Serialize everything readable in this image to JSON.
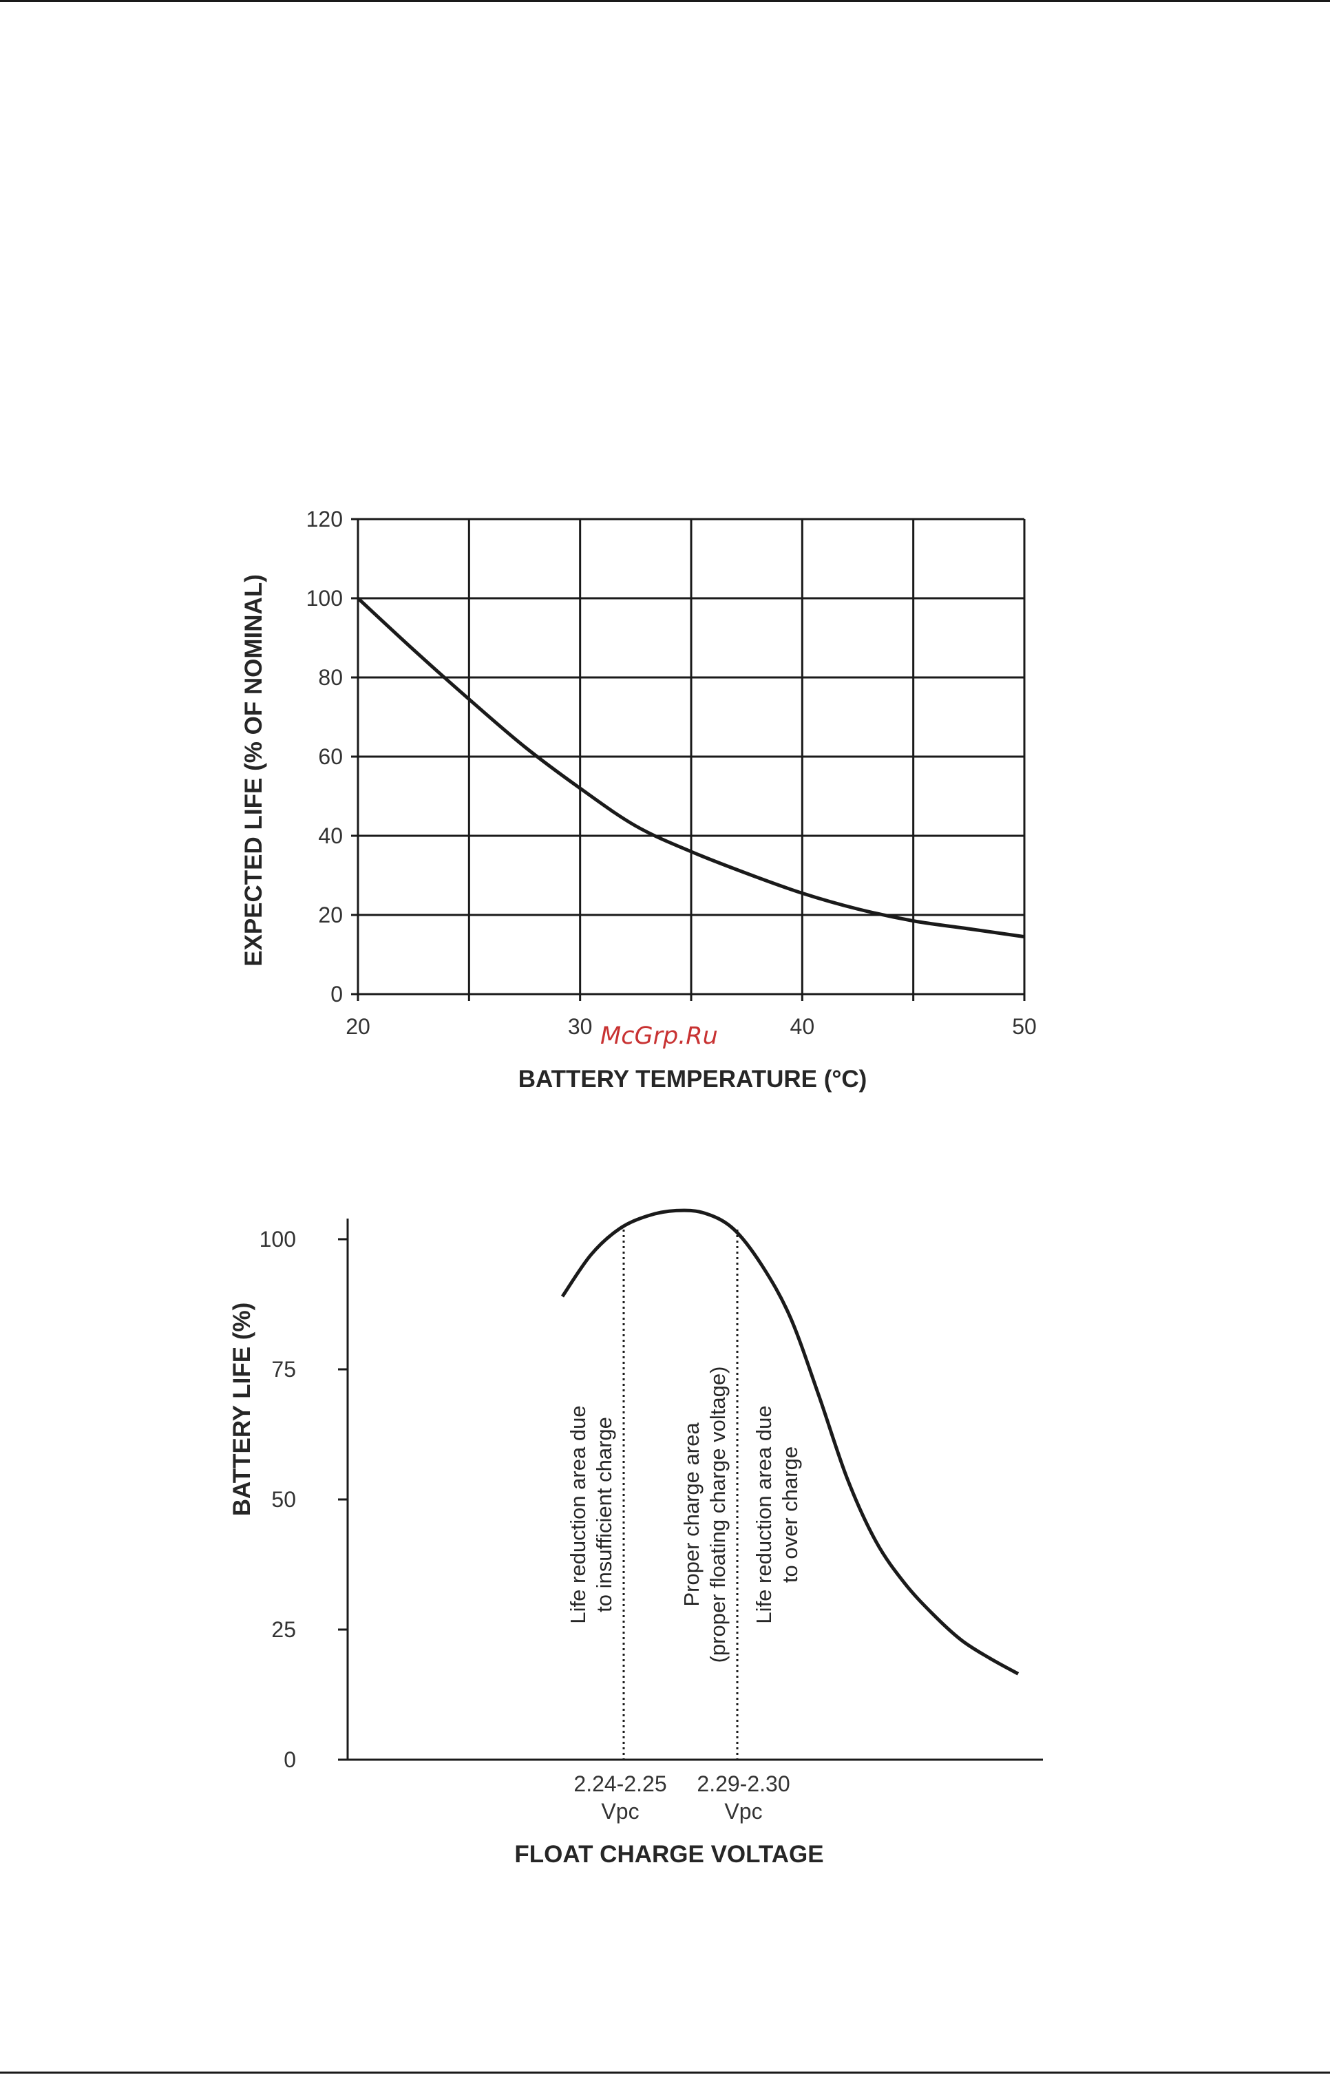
{
  "watermark": "McGrp.Ru",
  "colors": {
    "line": "#1a1a1a",
    "grid": "#1a1a1a",
    "text": "#262626",
    "watermark": "#c83232"
  },
  "chart_data": [
    {
      "type": "line",
      "title": "",
      "xlabel": "BATTERY TEMPERATURE (°C)",
      "ylabel": "EXPECTED LIFE (% OF NOMINAL)",
      "xlim": [
        20,
        50
      ],
      "ylim": [
        0,
        120
      ],
      "x_ticks": [
        20,
        30,
        40,
        50
      ],
      "y_ticks": [
        0,
        20,
        40,
        60,
        80,
        100,
        120
      ],
      "grid": true,
      "series": [
        {
          "x": [
            20,
            22.5,
            25,
            27.5,
            30,
            32.5,
            35,
            37.5,
            40,
            42.5,
            45,
            47.5,
            50
          ],
          "y": [
            100,
            87,
            74.5,
            62.5,
            52,
            42.5,
            36,
            30.5,
            25.5,
            21.5,
            18.5,
            16.5,
            14.5
          ]
        }
      ]
    },
    {
      "type": "line",
      "title": "",
      "xlabel": "FLOAT CHARGE VOLTAGE",
      "ylabel": "BATTERY LIFE (%)",
      "ylim": [
        0,
        100
      ],
      "y_ticks": [
        0,
        25,
        50,
        75,
        100
      ],
      "grid": false,
      "x_labels": [
        {
          "lines": [
            "2.24-2.25",
            "Vpc"
          ]
        },
        {
          "lines": [
            "2.29-2.30",
            "Vpc"
          ]
        }
      ],
      "regions": [
        {
          "label": [
            "Life reduction area due",
            "to insufficient charge"
          ]
        },
        {
          "label": [
            "Proper charge area",
            "(proper floating charge voltage)"
          ]
        },
        {
          "label": [
            "Life reduction area due",
            "to over charge"
          ]
        }
      ],
      "series": [
        {
          "y": [
            89,
            97,
            102,
            104.5,
            105.5,
            105,
            102,
            95,
            85,
            70,
            54,
            42,
            34,
            28,
            23,
            19.5,
            16.5
          ]
        }
      ]
    }
  ]
}
